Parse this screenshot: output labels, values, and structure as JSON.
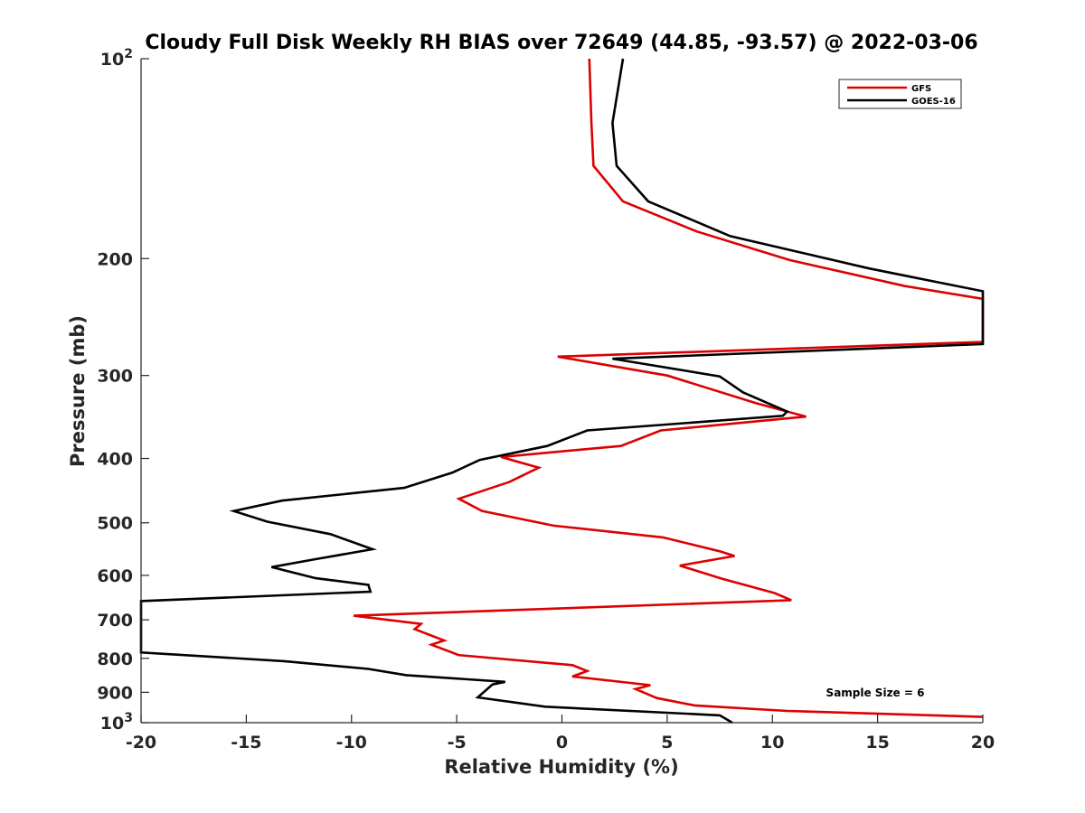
{
  "chart_data": {
    "type": "line",
    "title": "Cloudy Full Disk Weekly RH BIAS over 72649 (44.85, -93.57) @ 2022-03-06",
    "xlabel": "Relative Humidity (%)",
    "ylabel": "Pressure (mb)",
    "xlim": [
      -20,
      20
    ],
    "ylim": [
      100,
      1000
    ],
    "y_scale": "log",
    "y_reversed": true,
    "x_ticks": [
      "-20",
      "-15",
      "-10",
      "-5",
      "0",
      "5",
      "10",
      "15",
      "20"
    ],
    "y_ticks": [
      {
        "value": 100,
        "label": "10",
        "sup": "2"
      },
      {
        "value": 200,
        "label": "200"
      },
      {
        "value": 300,
        "label": "300"
      },
      {
        "value": 400,
        "label": "400"
      },
      {
        "value": 500,
        "label": "500"
      },
      {
        "value": 600,
        "label": "600"
      },
      {
        "value": 700,
        "label": "700"
      },
      {
        "value": 800,
        "label": "800"
      },
      {
        "value": 900,
        "label": "900"
      },
      {
        "value": 1000,
        "label": "10",
        "sup": "3"
      }
    ],
    "legend_position": "top-right",
    "grid": false,
    "series": [
      {
        "name": "GFS",
        "color": "#dd0000",
        "points": [
          [
            1.3,
            100
          ],
          [
            1.4,
            125
          ],
          [
            1.5,
            145
          ],
          [
            2.9,
            164
          ],
          [
            6.4,
            182
          ],
          [
            10.8,
            201
          ],
          [
            16.3,
            220
          ],
          [
            20.0,
            230
          ],
          [
            20.0,
            267
          ],
          [
            -0.2,
            281
          ],
          [
            5.0,
            300
          ],
          [
            9.2,
            330
          ],
          [
            11.6,
            346
          ],
          [
            4.7,
            363
          ],
          [
            2.8,
            383
          ],
          [
            -2.9,
            398
          ],
          [
            -1.1,
            413
          ],
          [
            -2.5,
            434
          ],
          [
            -4.9,
            460
          ],
          [
            -3.8,
            480
          ],
          [
            -0.4,
            505
          ],
          [
            4.8,
            526
          ],
          [
            7.5,
            552
          ],
          [
            8.2,
            561
          ],
          [
            5.6,
            580
          ],
          [
            7.6,
            607
          ],
          [
            10.1,
            638
          ],
          [
            10.9,
            654
          ],
          [
            -9.9,
            690
          ],
          [
            -6.7,
            710
          ],
          [
            -7.0,
            723
          ],
          [
            -5.6,
            752
          ],
          [
            -6.2,
            763
          ],
          [
            -4.9,
            791
          ],
          [
            0.5,
            819
          ],
          [
            1.2,
            836
          ],
          [
            0.5,
            852
          ],
          [
            4.2,
            878
          ],
          [
            3.5,
            890
          ],
          [
            4.5,
            918
          ],
          [
            6.3,
            942
          ],
          [
            10.7,
            960
          ],
          [
            20.0,
            980
          ]
        ]
      },
      {
        "name": "GOES-16",
        "color": "#000000",
        "points": [
          [
            2.9,
            100
          ],
          [
            2.4,
            125
          ],
          [
            2.6,
            145
          ],
          [
            4.1,
            164
          ],
          [
            8.0,
            185
          ],
          [
            14.6,
            207
          ],
          [
            20.0,
            224
          ],
          [
            20.0,
            269
          ],
          [
            2.4,
            283
          ],
          [
            7.5,
            301
          ],
          [
            8.6,
            318
          ],
          [
            10.7,
            340
          ],
          [
            10.5,
            345
          ],
          [
            1.2,
            363
          ],
          [
            -0.7,
            383
          ],
          [
            -3.9,
            402
          ],
          [
            -5.2,
            420
          ],
          [
            -7.5,
            443
          ],
          [
            -13.3,
            463
          ],
          [
            -15.6,
            480
          ],
          [
            -14.0,
            498
          ],
          [
            -11.0,
            520
          ],
          [
            -9.0,
            548
          ],
          [
            -11.8,
            568
          ],
          [
            -13.8,
            583
          ],
          [
            -11.7,
            606
          ],
          [
            -9.2,
            620
          ],
          [
            -9.1,
            635
          ],
          [
            -20.0,
            656
          ],
          [
            -20.0,
            784
          ],
          [
            -13.2,
            808
          ],
          [
            -9.2,
            830
          ],
          [
            -7.4,
            848
          ],
          [
            -2.7,
            868
          ],
          [
            -3.3,
            876
          ],
          [
            -4.0,
            916
          ],
          [
            -0.8,
            946
          ],
          [
            7.5,
            975
          ],
          [
            8.1,
            1000
          ]
        ]
      }
    ],
    "annotation": "Sample Size = 6"
  }
}
